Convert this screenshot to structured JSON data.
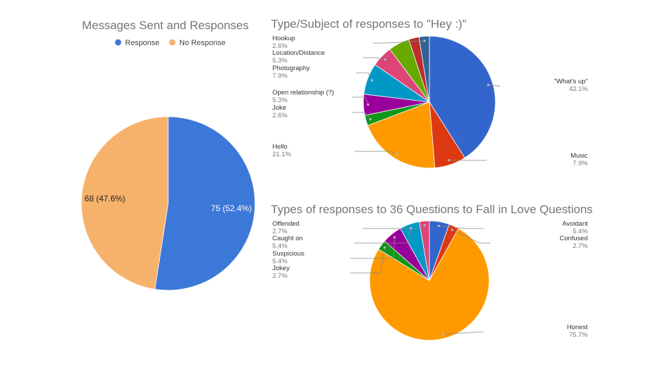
{
  "chart_data": [
    {
      "type": "pie",
      "title": "Messages Sent and Responses",
      "legend_position": "top",
      "slice_label_style": "value (percent)",
      "series": [
        {
          "name": "Response",
          "value": 75,
          "percent": "52.4%",
          "label": "75 (52.4%)",
          "color": "#3c78d8"
        },
        {
          "name": "No Response",
          "value": 68,
          "percent": "47.6%",
          "label": "68 (47.6%)",
          "color": "#f6b26b"
        }
      ]
    },
    {
      "type": "pie",
      "title": "Type/Subject of responses to \"Hey :)\"",
      "legend_position": "callouts",
      "series": [
        {
          "name": "\"What's up\"",
          "percent": 42.1,
          "percent_label": "42.1%",
          "color": "#3366cc"
        },
        {
          "name": "Music",
          "percent": 7.9,
          "percent_label": "7.9%",
          "color": "#dc3912"
        },
        {
          "name": "Hello",
          "percent": 21.1,
          "percent_label": "21.1%",
          "color": "#ff9900"
        },
        {
          "name": "Joke",
          "percent": 2.6,
          "percent_label": "2.6%",
          "color": "#109618"
        },
        {
          "name": "Open relationship (?)",
          "percent": 5.3,
          "percent_label": "5.3%",
          "color": "#990099"
        },
        {
          "name": "Photography",
          "percent": 7.9,
          "percent_label": "7.9%",
          "color": "#0099c6"
        },
        {
          "name": "Location/Distance",
          "percent": 5.3,
          "percent_label": "5.3%",
          "color": "#dd4477"
        },
        {
          "name": "",
          "percent": 5.3,
          "percent_label": "",
          "color": "#66aa00"
        },
        {
          "name": "",
          "percent": 2.6,
          "percent_label": "",
          "color": "#b82e2e"
        },
        {
          "name": "Hookup",
          "percent": 2.6,
          "percent_label": "2.6%",
          "color": "#316395"
        }
      ]
    },
    {
      "type": "pie",
      "title": "Types of responses to 36 Questions to Fall in Love Questions",
      "legend_position": "callouts",
      "series": [
        {
          "name": "Avoidant",
          "percent": 5.4,
          "percent_label": "5.4%",
          "color": "#3366cc"
        },
        {
          "name": "Confused",
          "percent": 2.7,
          "percent_label": "2.7%",
          "color": "#dc3912"
        },
        {
          "name": "Honest",
          "percent": 75.7,
          "percent_label": "75.7%",
          "color": "#ff9900"
        },
        {
          "name": "Jokey",
          "percent": 2.7,
          "percent_label": "2.7%",
          "color": "#109618"
        },
        {
          "name": "Suspicious",
          "percent": 5.4,
          "percent_label": "5.4%",
          "color": "#990099"
        },
        {
          "name": "Caught on",
          "percent": 5.4,
          "percent_label": "5.4%",
          "color": "#0099c6"
        },
        {
          "name": "Offended",
          "percent": 2.7,
          "percent_label": "2.7%",
          "color": "#dd4477"
        }
      ]
    }
  ]
}
